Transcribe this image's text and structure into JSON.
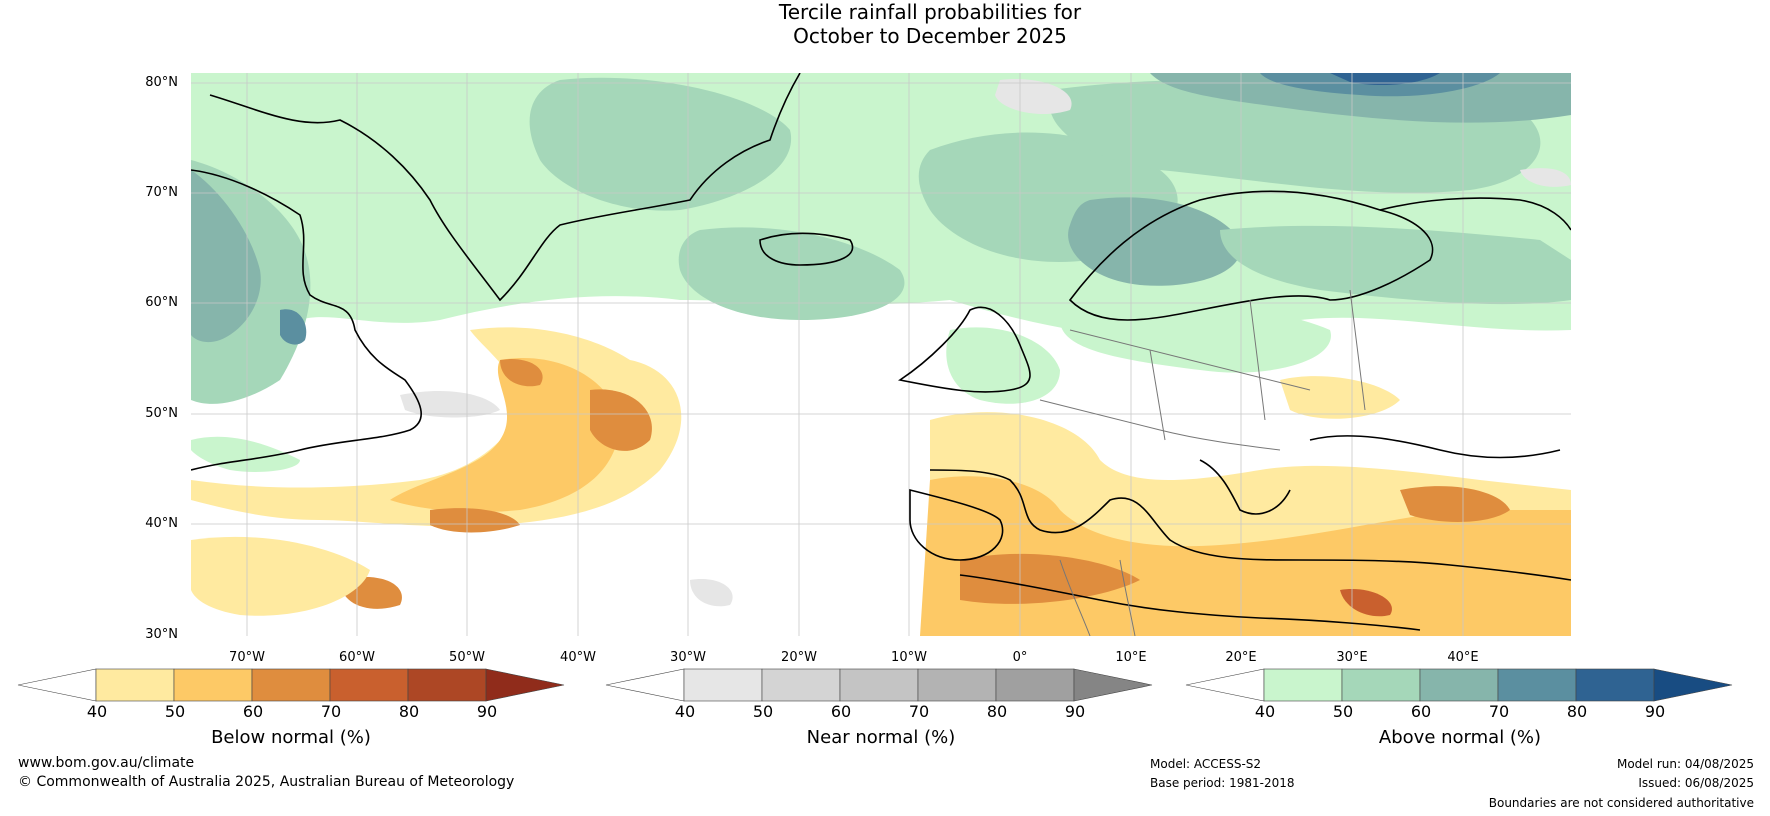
{
  "title_line1": "Tercile rainfall probabilities for",
  "title_line2": "October to December 2025",
  "latitude_labels": [
    "80°N",
    "70°N",
    "60°N",
    "50°N",
    "40°N",
    "30°N"
  ],
  "longitude_labels": [
    "70°W",
    "60°W",
    "50°W",
    "40°W",
    "30°W",
    "20°W",
    "10°W",
    "0°",
    "10°E",
    "20°E",
    "30°E",
    "40°E"
  ],
  "colorbars": [
    {
      "label": "Below normal (%)",
      "ticks": [
        "40",
        "50",
        "60",
        "70",
        "80",
        "90"
      ],
      "colors": [
        "#ffffff",
        "#ffeaa0",
        "#fdc966",
        "#df8d3e",
        "#c9602e",
        "#ad4725",
        "#902c1b"
      ]
    },
    {
      "label": "Near normal (%)",
      "ticks": [
        "40",
        "50",
        "60",
        "70",
        "80",
        "90"
      ],
      "colors": [
        "#ffffff",
        "#e6e6e6",
        "#d4d4d4",
        "#c4c4c4",
        "#b3b3b3",
        "#a0a0a0",
        "#858585"
      ]
    },
    {
      "label": "Above normal (%)",
      "ticks": [
        "40",
        "50",
        "60",
        "70",
        "80",
        "90"
      ],
      "colors": [
        "#ffffff",
        "#c9f5cd",
        "#a5d7b9",
        "#86b5ab",
        "#5b8fa0",
        "#2f6392",
        "#184c82"
      ]
    }
  ],
  "footer": {
    "website": "www.bom.gov.au/climate",
    "copyright": "© Commonwealth of Australia 2025, Australian Bureau of Meteorology",
    "model": "Model: ACCESS-S2",
    "base_period": "Base period: 1981-2018",
    "model_run": "Model run: 04/08/2025",
    "issued": "Issued: 06/08/2025",
    "disclaimer": "Boundaries are not considered authoritative"
  }
}
